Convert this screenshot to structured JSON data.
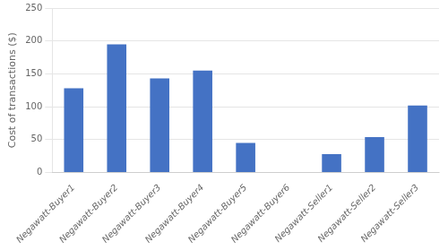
{
  "chart_data": {
    "type": "bar",
    "ylabel": "Cost of transactions ($)",
    "categories": [
      "Negawatt-Buyer1",
      "Negawatt-Buyer2",
      "Negawatt-Buyer3",
      "Negawatt-Buyer4",
      "Negawatt-Buyer5",
      "Negawatt-Buyer6",
      "Negawatt-Seller1",
      "Negawatt-Seller2",
      "Negawatt-Seller3"
    ],
    "values": [
      128,
      195,
      143,
      155,
      45,
      0,
      28,
      54,
      102
    ],
    "color": "#4472C4",
    "ylim": [
      0,
      250
    ],
    "yticks": [
      0,
      50,
      100,
      150,
      200,
      250
    ],
    "grid": true
  }
}
